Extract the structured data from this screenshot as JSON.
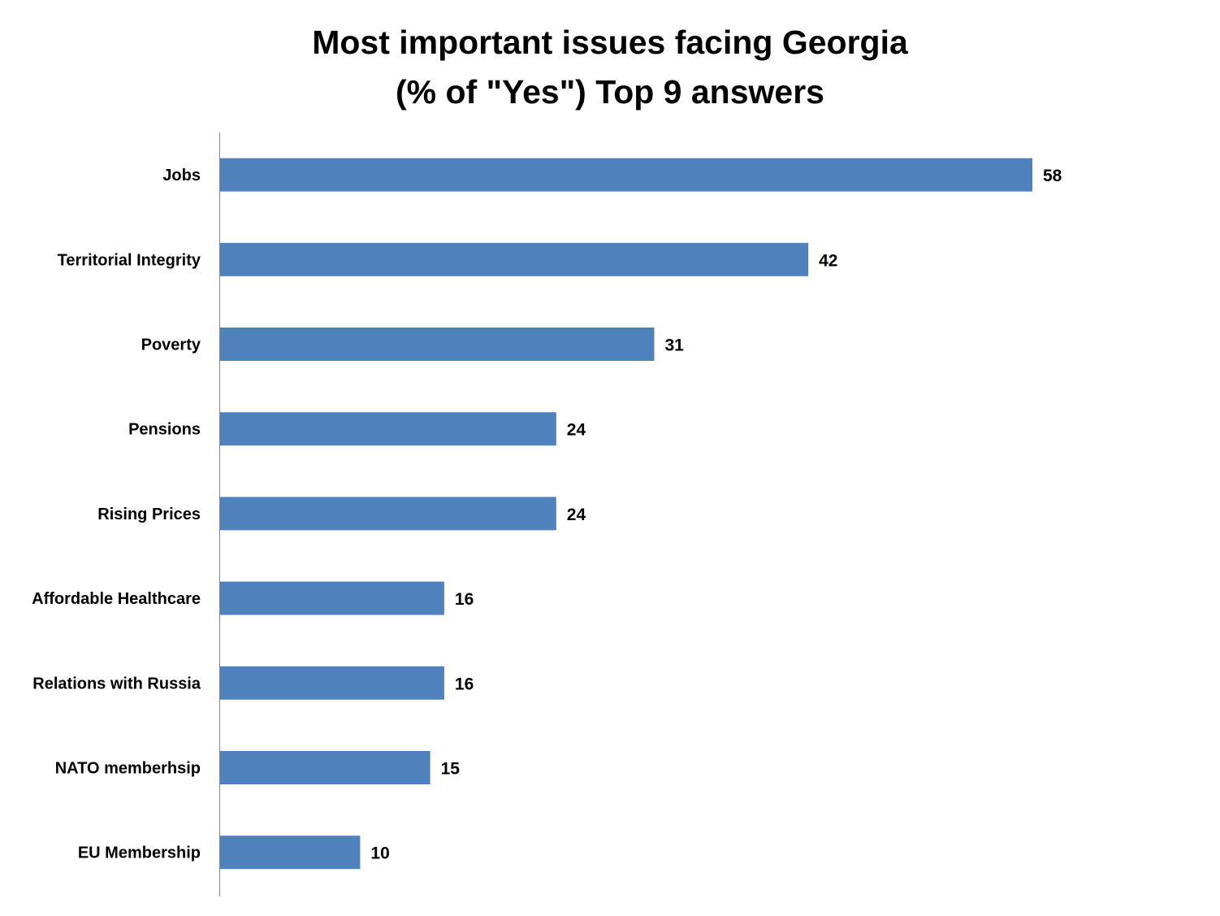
{
  "chart_data": {
    "type": "bar",
    "orientation": "horizontal",
    "title_lines": [
      "Most important issues facing Georgia",
      "(% of \"Yes\") Top 9 answers"
    ],
    "title": "Most important issues facing Georgia (% of \"Yes\") Top 9 answers",
    "xlabel": "",
    "ylabel": "",
    "categories": [
      "Jobs",
      "Territorial Integrity",
      "Poverty",
      "Pensions",
      "Rising Prices",
      "Affordable Healthcare",
      "Relations with Russia",
      "NATO memberhsip",
      "EU Membership"
    ],
    "values": [
      58,
      42,
      31,
      24,
      24,
      16,
      16,
      15,
      10
    ],
    "xlim": [
      0,
      70
    ],
    "bar_color": "#4f81bd",
    "axis_color": "#868686",
    "grid": false,
    "legend": "none",
    "data_labels": true
  }
}
